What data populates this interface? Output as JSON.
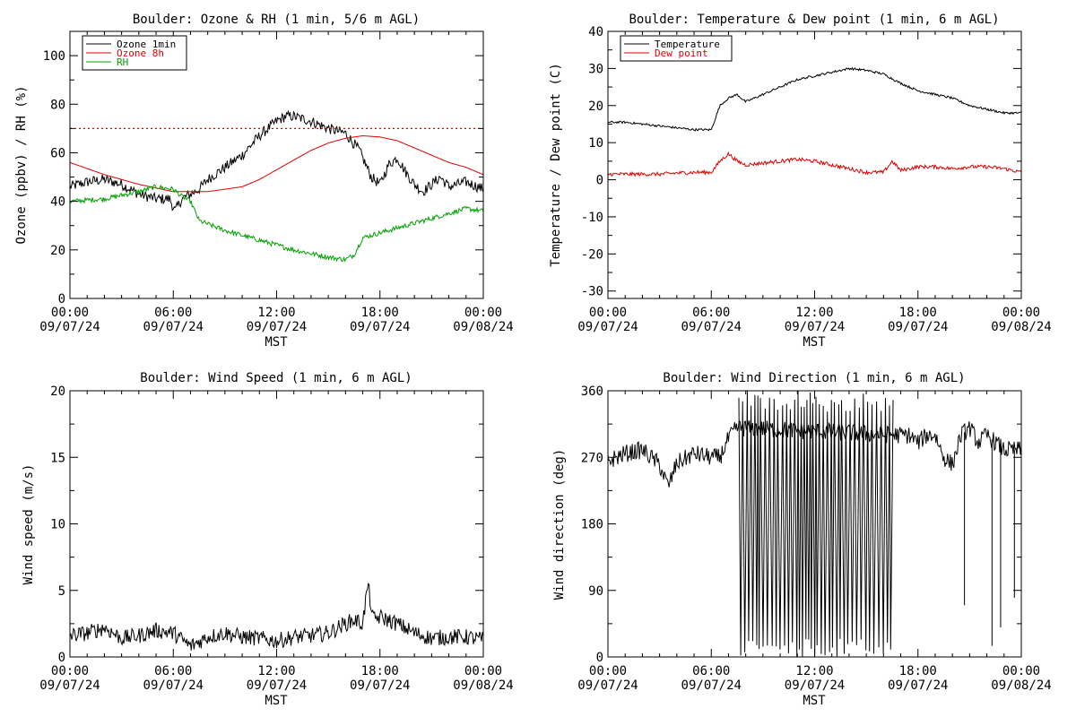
{
  "chart_data": [
    {
      "type": "line",
      "title": "Boulder: Ozone & RH (1 min, 5/6 m AGL)",
      "ylabel": "Ozone (ppbv) / RH (%)",
      "xlabel": "MST",
      "ylim": [
        0,
        110
      ],
      "yticks": [
        0,
        20,
        40,
        60,
        80,
        100
      ],
      "xlim": [
        0,
        24
      ],
      "xticks": [
        {
          "x": 0,
          "time": "00:00",
          "date": "09/07/24"
        },
        {
          "x": 6,
          "time": "06:00",
          "date": "09/07/24"
        },
        {
          "x": 12,
          "time": "12:00",
          "date": "09/07/24"
        },
        {
          "x": 18,
          "time": "18:00",
          "date": "09/07/24"
        },
        {
          "x": 24,
          "time": "00:00",
          "date": "09/08/24"
        }
      ],
      "legend": [
        {
          "label": "Ozone 1min",
          "color": "#000000"
        },
        {
          "label": "Ozone 8h",
          "color": "#e00000"
        },
        {
          "label": "RH",
          "color": "#00a000"
        }
      ],
      "reference_line": {
        "y": 70,
        "color": "#e00000",
        "style": "dotted"
      },
      "series": [
        {
          "name": "Ozone 1min",
          "color": "#000000",
          "noise": 2.2,
          "x": [
            0,
            1,
            2,
            3,
            4,
            5,
            5.8,
            6.1,
            6.5,
            7,
            7.5,
            8,
            9,
            10,
            11,
            12,
            12.5,
            13,
            14,
            15,
            16,
            16.8,
            17.5,
            18,
            18.5,
            19,
            19.5,
            20,
            20.5,
            21,
            21.5,
            22,
            23,
            24
          ],
          "y": [
            46,
            48,
            49,
            47,
            43,
            41,
            41,
            36,
            41,
            43,
            45,
            49,
            54,
            59,
            67,
            73,
            75,
            75,
            73,
            70,
            68,
            61,
            50,
            47,
            55,
            58,
            52,
            47,
            44,
            47,
            50,
            46,
            48,
            45
          ]
        },
        {
          "name": "Ozone 8h",
          "color": "#e00000",
          "noise": 0,
          "x": [
            0,
            2,
            4,
            6,
            8,
            10,
            11,
            12,
            13,
            14,
            15,
            16,
            17,
            18,
            19,
            20,
            21,
            22,
            23,
            24
          ],
          "y": [
            56,
            51,
            47,
            44,
            44,
            46,
            49,
            53,
            57,
            61,
            64,
            66,
            67,
            66.5,
            65,
            62,
            59,
            56,
            54,
            51
          ]
        },
        {
          "name": "RH",
          "color": "#00a000",
          "noise": 1.0,
          "x": [
            0,
            2,
            4,
            5,
            6,
            6.5,
            7,
            7.5,
            9,
            11,
            13,
            15,
            16,
            16.5,
            17,
            18,
            19,
            20,
            21,
            22,
            23,
            24
          ],
          "y": [
            40,
            41,
            44,
            46,
            45,
            42,
            40,
            32,
            28,
            24,
            20,
            17,
            16,
            18,
            25,
            27,
            29,
            31,
            33,
            35,
            37,
            36
          ]
        }
      ]
    },
    {
      "type": "line",
      "title": "Boulder: Temperature & Dew point (1 min, 6 m AGL)",
      "ylabel": "Temperature / Dew point (C)",
      "xlabel": "MST",
      "ylim": [
        -32,
        40
      ],
      "yticks": [
        -30,
        -20,
        -10,
        0,
        10,
        20,
        30,
        40
      ],
      "xlim": [
        0,
        24
      ],
      "xticks": [
        {
          "x": 0,
          "time": "00:00",
          "date": "09/07/24"
        },
        {
          "x": 6,
          "time": "06:00",
          "date": "09/07/24"
        },
        {
          "x": 12,
          "time": "12:00",
          "date": "09/07/24"
        },
        {
          "x": 18,
          "time": "18:00",
          "date": "09/07/24"
        },
        {
          "x": 24,
          "time": "00:00",
          "date": "09/08/24"
        }
      ],
      "legend": [
        {
          "label": "Temperature",
          "color": "#000000"
        },
        {
          "label": "Dew point",
          "color": "#e00000"
        }
      ],
      "series": [
        {
          "name": "Temperature",
          "color": "#000000",
          "noise": 0.3,
          "x": [
            0,
            1,
            2,
            3,
            4,
            5,
            6,
            6.5,
            7,
            7.5,
            8,
            9,
            10,
            11,
            12,
            13,
            14,
            15,
            16,
            17,
            18,
            19,
            20,
            21,
            22,
            23,
            24
          ],
          "y": [
            15.5,
            15.5,
            15,
            14.5,
            14,
            13.5,
            13.5,
            20,
            22,
            23,
            21,
            23,
            25,
            27,
            28,
            29,
            30,
            29.5,
            28.5,
            26,
            24,
            23,
            22,
            20,
            19,
            18,
            18
          ]
        },
        {
          "name": "Dew point",
          "color": "#e00000",
          "noise": 0.5,
          "x": [
            0,
            1,
            2,
            3,
            4,
            5,
            6,
            6.5,
            7,
            7.5,
            8,
            9,
            10,
            11,
            12,
            13,
            14,
            15,
            16,
            16.5,
            17,
            18,
            19,
            20,
            21,
            22,
            23,
            24
          ],
          "y": [
            1.5,
            1.5,
            1.5,
            1.5,
            1.8,
            2,
            2,
            5,
            7,
            5,
            4,
            4.5,
            5,
            5.5,
            5,
            4,
            3,
            2,
            2,
            5,
            2.5,
            3.5,
            3.5,
            3,
            3.5,
            3.5,
            3,
            2
          ]
        }
      ]
    },
    {
      "type": "line",
      "title": "Boulder: Wind Speed (1 min, 6 m AGL)",
      "ylabel": "Wind speed (m/s)",
      "xlabel": "MST",
      "ylim": [
        0,
        20
      ],
      "yticks": [
        0,
        5,
        10,
        15,
        20
      ],
      "xlim": [
        0,
        24
      ],
      "xticks": [
        {
          "x": 0,
          "time": "00:00",
          "date": "09/07/24"
        },
        {
          "x": 6,
          "time": "06:00",
          "date": "09/07/24"
        },
        {
          "x": 12,
          "time": "12:00",
          "date": "09/07/24"
        },
        {
          "x": 18,
          "time": "18:00",
          "date": "09/07/24"
        },
        {
          "x": 24,
          "time": "00:00",
          "date": "09/08/24"
        }
      ],
      "series": [
        {
          "name": "Wind speed",
          "color": "#000000",
          "noise": 0.6,
          "x": [
            0,
            1,
            2,
            3,
            4,
            5,
            6,
            7,
            8,
            9,
            10,
            11,
            12,
            13,
            14,
            15,
            16,
            16.5,
            17,
            17.3,
            17.6,
            18,
            19,
            20,
            21,
            22,
            23,
            24
          ],
          "y": [
            1.6,
            1.8,
            2.2,
            1.4,
            1.6,
            2.0,
            1.8,
            0.8,
            1.5,
            1.8,
            1.5,
            1.4,
            1.2,
            1.5,
            1.6,
            1.8,
            2.5,
            2.8,
            2.5,
            5.5,
            2.8,
            3.0,
            2.5,
            1.8,
            1.4,
            1.5,
            1.5,
            1.3
          ]
        }
      ]
    },
    {
      "type": "line",
      "title": "Boulder: Wind Direction (1 min, 6 m AGL)",
      "ylabel": "Wind direction (deg)",
      "xlabel": "MST",
      "ylim": [
        0,
        360
      ],
      "yticks": [
        0,
        90,
        180,
        270,
        360
      ],
      "xlim": [
        0,
        24
      ],
      "xticks": [
        {
          "x": 0,
          "time": "00:00",
          "date": "09/07/24"
        },
        {
          "x": 6,
          "time": "06:00",
          "date": "09/07/24"
        },
        {
          "x": 12,
          "time": "12:00",
          "date": "09/07/24"
        },
        {
          "x": 18,
          "time": "18:00",
          "date": "09/07/24"
        },
        {
          "x": 24,
          "time": "00:00",
          "date": "09/08/24"
        }
      ],
      "series": [
        {
          "name": "Wind direction",
          "color": "#000000",
          "noise": 12,
          "x": [
            0,
            1,
            2,
            3,
            3.5,
            4,
            5,
            6,
            6.5,
            7,
            7.5,
            17.0,
            17.5,
            18.0,
            18.5,
            19.0,
            19.5,
            20.0,
            20.5,
            21,
            21.5,
            22,
            22.5,
            23,
            23.5,
            24
          ],
          "y": [
            265,
            275,
            280,
            260,
            230,
            262,
            275,
            270,
            270,
            295,
            310,
            300,
            300,
            290,
            300,
            300,
            270,
            260,
            300,
            310,
            290,
            300,
            290,
            280,
            280,
            280
          ]
        },
        {
          "name": "Wind direction (variable)",
          "color": "#000000",
          "oscillate": [
            7.6,
            16.6
          ]
        }
      ],
      "spikes": [
        {
          "x": 20.7,
          "y": 70
        },
        {
          "x": 22.3,
          "y": 15
        },
        {
          "x": 22.8,
          "y": 40
        },
        {
          "x": 23.6,
          "y": 80
        }
      ]
    }
  ]
}
